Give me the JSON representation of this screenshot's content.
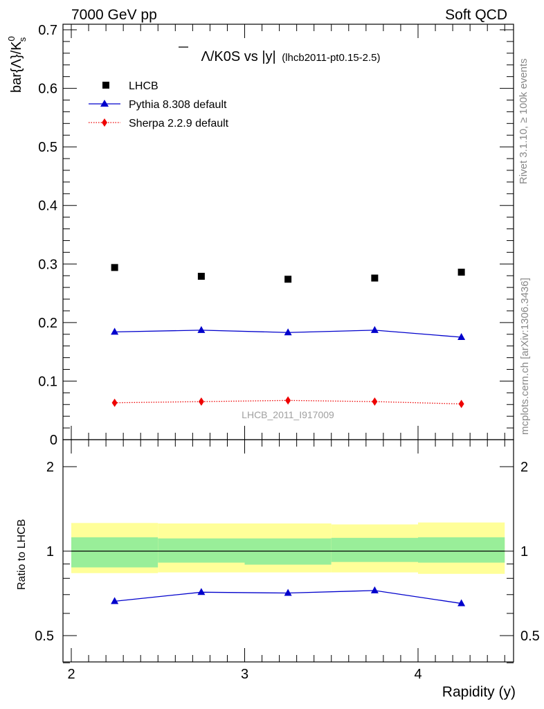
{
  "header": {
    "left": "7000 GeV pp",
    "right": "Soft QCD"
  },
  "plot_title": {
    "main": "Λ/K0S vs |y|",
    "sub": "(lhcb2011-pt0.15-2.5)"
  },
  "side_texts": {
    "rivet": "Rivet 3.1.10, ≥ 100k events",
    "mcplots": "mcplots.cern.ch [arXiv:1306.3436]"
  },
  "watermark": "LHCB_2011_I917009",
  "chart_data": [
    {
      "type": "scatter",
      "ylabel": "bar{Λ}/K",
      "ylabel_sup": "0",
      "ylabel_sub": "s",
      "ylim": [
        0,
        0.7
      ],
      "yticks": [
        "0",
        "0.1",
        "0.2",
        "0.3",
        "0.4",
        "0.5",
        "0.6",
        "0.7"
      ],
      "x": [
        2.25,
        2.75,
        3.25,
        3.75,
        4.25
      ],
      "legend": [
        "LHCB",
        "Pythia 8.308 default",
        "Sherpa 2.2.9 default"
      ],
      "legend_position": "top-left",
      "series": [
        {
          "name": "LHCB",
          "marker": "square",
          "color": "#000000",
          "values": [
            0.294,
            0.279,
            0.274,
            0.276,
            0.286
          ]
        },
        {
          "name": "Pythia 8.308 default",
          "marker": "triangle",
          "line": "solid",
          "color": "#0000cc",
          "values": [
            0.184,
            0.187,
            0.183,
            0.187,
            0.175
          ]
        },
        {
          "name": "Sherpa 2.2.9 default",
          "marker": "diamond",
          "line": "dotted",
          "color": "#ee0000",
          "values": [
            0.063,
            0.065,
            0.067,
            0.065,
            0.061
          ]
        }
      ]
    },
    {
      "type": "line",
      "ylabel": "Ratio to LHCB",
      "xlabel": "Rapidity (y)",
      "xlim": [
        1.95,
        4.55
      ],
      "ylim": [
        0.35,
        2.3
      ],
      "xticks": [
        "2",
        "3",
        "4"
      ],
      "yticks": [
        "0.5",
        "1",
        "2"
      ],
      "reference_line": 1,
      "bands": {
        "x_edges": [
          2.0,
          2.5,
          3.0,
          3.5,
          4.0,
          4.5
        ],
        "inner_color": "#99ee99",
        "outer_color": "#ffff99",
        "inner": [
          [
            0.875,
            1.12
          ],
          [
            0.91,
            1.11
          ],
          [
            0.895,
            1.11
          ],
          [
            0.915,
            1.115
          ],
          [
            0.91,
            1.12
          ]
        ],
        "outer": [
          [
            0.835,
            1.26
          ],
          [
            0.84,
            1.255
          ],
          [
            0.84,
            1.255
          ],
          [
            0.84,
            1.245
          ],
          [
            0.83,
            1.265
          ]
        ]
      },
      "x": [
        2.25,
        2.75,
        3.25,
        3.75,
        4.25
      ],
      "series": [
        {
          "name": "Pythia 8.308 default",
          "marker": "triangle",
          "color": "#0000cc",
          "values": [
            0.663,
            0.714,
            0.709,
            0.724,
            0.651
          ]
        }
      ]
    }
  ]
}
